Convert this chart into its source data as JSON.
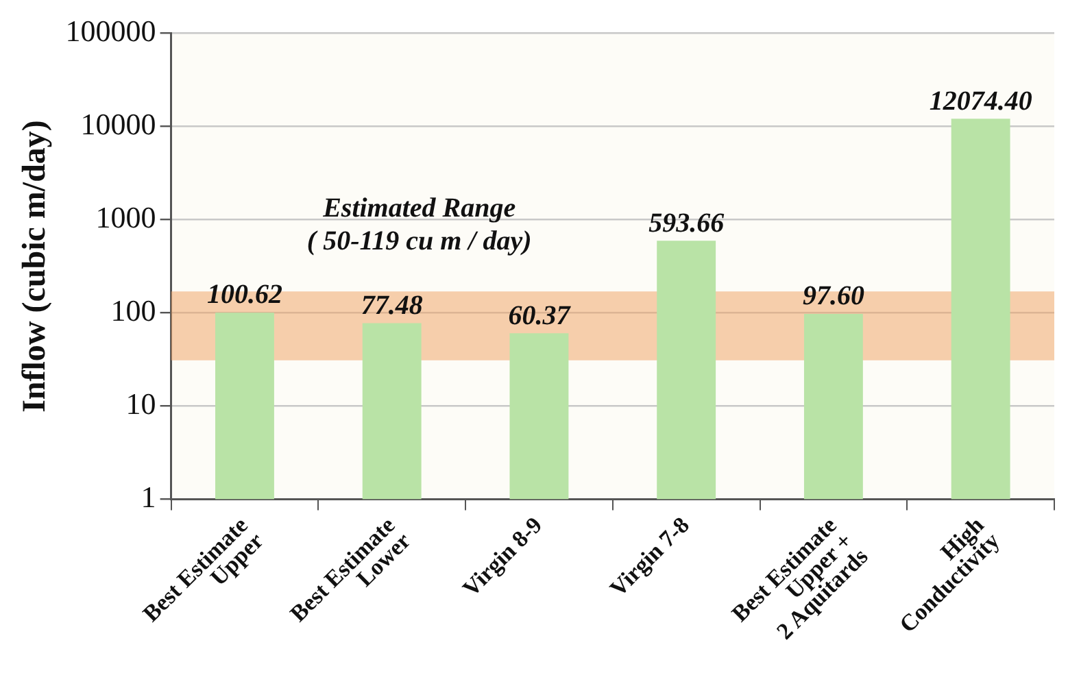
{
  "chart_data": {
    "type": "bar",
    "ylabel": "Inflow (cubic m/day)",
    "categories": [
      "Best Estimate\nUpper",
      "Best Estimate\nLower",
      "Virgin 8-9",
      "Virgin 7-8",
      "Best Estimate\nUpper +\n2 Aquitards",
      "High\nConductivity"
    ],
    "values": [
      100.62,
      77.48,
      60.37,
      593.66,
      97.6,
      12074.4
    ],
    "color": "#b9e3a6",
    "value_labels": [
      "100.62",
      "77.48",
      "60.37",
      "593.66",
      "97.60",
      "12074.40"
    ],
    "log": "y",
    "ylim": [
      1,
      100000
    ],
    "yticks": [
      1,
      10,
      100,
      1000,
      10000,
      100000
    ],
    "grid": "y",
    "bands": [
      {
        "axis": "y",
        "from": 31,
        "to": 170,
        "label": "Estimated Range\n( 50-119 cu m / day)",
        "color": "#f0a060"
      }
    ]
  }
}
